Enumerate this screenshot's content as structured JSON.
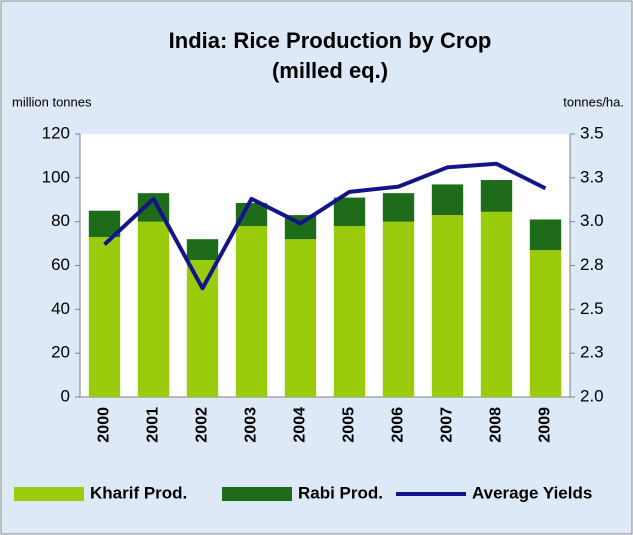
{
  "chart_data": {
    "type": "bar",
    "title": "India: Rice Production by Crop",
    "subtitle": "(milled eq.)",
    "ylabel": "million tonnes",
    "y2label": "tonnes/ha.",
    "categories": [
      "2000",
      "2001",
      "2002",
      "2003",
      "2004",
      "2005",
      "2006",
      "2007",
      "2008",
      "2009"
    ],
    "series": [
      {
        "name": "Kharif Prod.",
        "color": "#9acb0c",
        "stacked": true,
        "values": [
          73,
          80,
          62.5,
          78,
          72,
          78,
          80,
          83,
          84.5,
          67
        ]
      },
      {
        "name": "Rabi Prod.",
        "color": "#1e6b1a",
        "stacked": true,
        "values": [
          12,
          13,
          9.5,
          10.5,
          11,
          13,
          13,
          14,
          14.5,
          14
        ]
      },
      {
        "name": "Average Yields",
        "color": "#14148a",
        "axis": "y2",
        "kind": "line",
        "values": [
          2.87,
          3.13,
          2.62,
          3.13,
          2.99,
          3.17,
          3.2,
          3.31,
          3.33,
          3.19
        ]
      }
    ],
    "ylim": [
      0,
      120
    ],
    "yticks": [
      0,
      20,
      40,
      60,
      80,
      100,
      120
    ],
    "y2lim": [
      2.0,
      3.5
    ],
    "y2ticks": [
      {
        "value": 2.0,
        "label": "2.0"
      },
      {
        "value": 2.25,
        "label": "2.3"
      },
      {
        "value": 2.5,
        "label": "2.5"
      },
      {
        "value": 2.75,
        "label": "2.8"
      },
      {
        "value": 3.0,
        "label": "3.0"
      },
      {
        "value": 3.25,
        "label": "3.3"
      },
      {
        "value": 3.5,
        "label": "3.5"
      }
    ],
    "legend": "bottom",
    "grid": false
  }
}
